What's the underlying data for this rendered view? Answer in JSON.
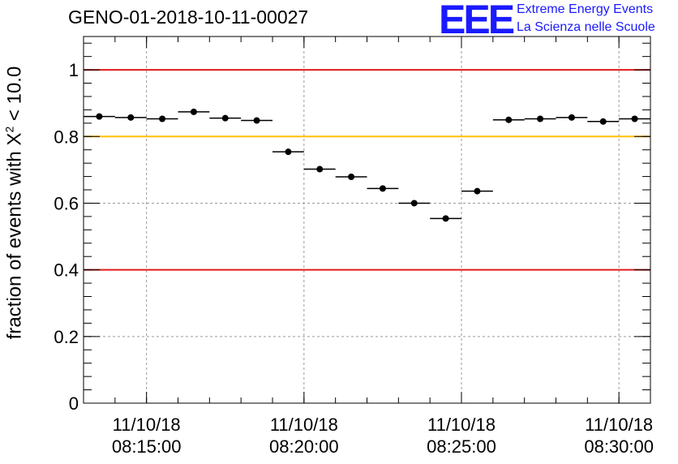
{
  "title": "GENO-01-2018-10-11-00027",
  "logo": {
    "mark": "EEE",
    "line1": "Extreme Energy Events",
    "line2": "La Scienza nelle Scuole",
    "color": "#1a1aff"
  },
  "chart_data": {
    "type": "scatter",
    "ylabel_prefix": "fraction of events with X",
    "ylabel_sup": "2",
    "ylabel_suffix": " < 10.0",
    "ylim": [
      0,
      1.1
    ],
    "yticks": [
      0,
      0.2,
      0.4,
      0.6,
      0.8,
      1
    ],
    "ytick_labels": [
      "0",
      "0.2",
      "0.4",
      "0.6",
      "0.8",
      "1"
    ],
    "xlim": [
      "08:13:00",
      "08:31:00"
    ],
    "xticks": [
      {
        "time": "08:15:00",
        "date": "11/10/18",
        "clock": "08:15:00"
      },
      {
        "time": "08:20:00",
        "date": "11/10/18",
        "clock": "08:20:00"
      },
      {
        "time": "08:25:00",
        "date": "11/10/18",
        "clock": "08:25:00"
      },
      {
        "time": "08:30:00",
        "date": "11/10/18",
        "clock": "08:30:00"
      }
    ],
    "grid": true,
    "reference_lines": [
      {
        "y": 1.0,
        "color": "#e31a1c"
      },
      {
        "y": 0.8,
        "color": "#ffc000"
      },
      {
        "y": 0.4,
        "color": "#e31a1c"
      }
    ],
    "bin_width_seconds": 60,
    "points": [
      {
        "x": "08:13:30",
        "y": 0.86
      },
      {
        "x": "08:14:30",
        "y": 0.857
      },
      {
        "x": "08:15:30",
        "y": 0.853
      },
      {
        "x": "08:16:30",
        "y": 0.874
      },
      {
        "x": "08:17:30",
        "y": 0.855
      },
      {
        "x": "08:18:30",
        "y": 0.848
      },
      {
        "x": "08:19:30",
        "y": 0.754
      },
      {
        "x": "08:20:30",
        "y": 0.702
      },
      {
        "x": "08:21:30",
        "y": 0.679
      },
      {
        "x": "08:22:30",
        "y": 0.644
      },
      {
        "x": "08:23:30",
        "y": 0.6
      },
      {
        "x": "08:24:30",
        "y": 0.554
      },
      {
        "x": "08:25:30",
        "y": 0.636
      },
      {
        "x": "08:26:30",
        "y": 0.85
      },
      {
        "x": "08:27:30",
        "y": 0.853
      },
      {
        "x": "08:28:30",
        "y": 0.857
      },
      {
        "x": "08:29:30",
        "y": 0.845
      },
      {
        "x": "08:30:30",
        "y": 0.853
      }
    ],
    "marker_color": "#000000"
  }
}
